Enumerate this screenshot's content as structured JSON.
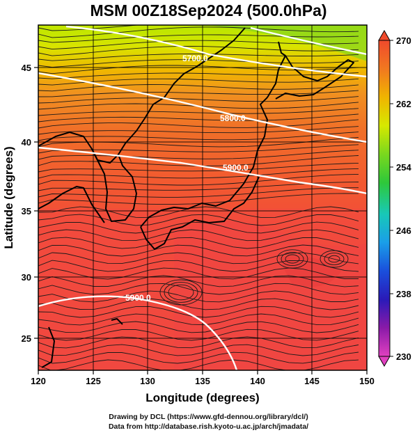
{
  "title": "MSM 00Z18Sep2024 (500.0hPa)",
  "credits": {
    "line1": "Drawing by DCL (https://www.gfd-dennou.org/library/dcl/)",
    "line2": "Data from http://database.rish.kyoto-u.ac.jp/arch/jmadata/"
  },
  "map": {
    "xlabel": "Longitude (degrees)",
    "ylabel": "Latitude  (degrees)",
    "lon_range": [
      120,
      150
    ],
    "lat_range": [
      22.4,
      47.6
    ],
    "lon_ticks": [
      "120",
      "125",
      "130",
      "135",
      "140",
      "145",
      "150"
    ],
    "lat_ticks": [
      "25",
      "30",
      "35",
      "40",
      "45"
    ],
    "contours": [
      {
        "label": "5700.0"
      },
      {
        "label": "5800.0"
      },
      {
        "label": "5900.0"
      },
      {
        "label": "5900.0"
      }
    ]
  },
  "colorbar": {
    "min": 230,
    "max": 270,
    "labels": [
      "270",
      "262",
      "254",
      "246",
      "238",
      "230"
    ],
    "stops": [
      "#e040c0",
      "#8a1aa8",
      "#2a1ab8",
      "#1a4fdc",
      "#1a9ee8",
      "#18c8b8",
      "#2ec83a",
      "#7ad81e",
      "#d6e800",
      "#f0b400",
      "#f07820",
      "#f04a2c"
    ]
  }
}
